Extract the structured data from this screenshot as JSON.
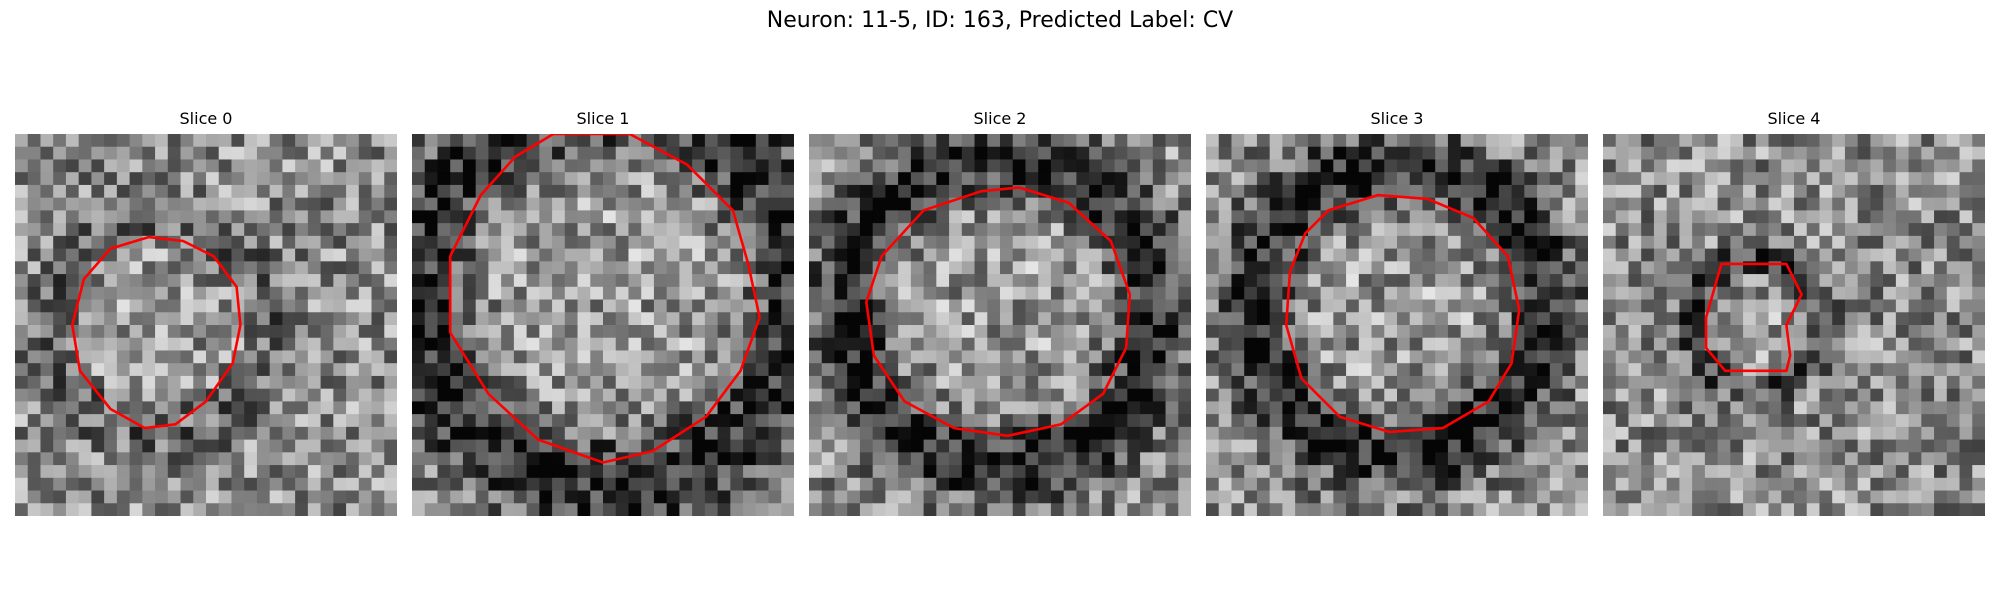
{
  "figure": {
    "title": "Neuron: 11-5, ID: 163, Predicted Label: CV",
    "contour_color": "#ff0000",
    "panels": [
      {
        "title": "Slice 0",
        "dark_ring_strength": 0.35,
        "contour": [
          [
            0.35,
            0.27
          ],
          [
            0.44,
            0.28
          ],
          [
            0.52,
            0.32
          ],
          [
            0.58,
            0.4
          ],
          [
            0.59,
            0.5
          ],
          [
            0.57,
            0.6
          ],
          [
            0.5,
            0.7
          ],
          [
            0.42,
            0.76
          ],
          [
            0.34,
            0.77
          ],
          [
            0.25,
            0.72
          ],
          [
            0.17,
            0.62
          ],
          [
            0.15,
            0.5
          ],
          [
            0.18,
            0.38
          ],
          [
            0.25,
            0.3
          ]
        ]
      },
      {
        "title": "Slice 1",
        "dark_ring_strength": 0.85,
        "contour": [
          [
            0.37,
            0.0
          ],
          [
            0.57,
            0.0
          ],
          [
            0.72,
            0.08
          ],
          [
            0.84,
            0.2
          ],
          [
            0.88,
            0.34
          ],
          [
            0.91,
            0.48
          ],
          [
            0.86,
            0.62
          ],
          [
            0.77,
            0.74
          ],
          [
            0.63,
            0.83
          ],
          [
            0.5,
            0.86
          ],
          [
            0.33,
            0.8
          ],
          [
            0.2,
            0.68
          ],
          [
            0.1,
            0.52
          ],
          [
            0.1,
            0.32
          ],
          [
            0.18,
            0.16
          ],
          [
            0.27,
            0.06
          ]
        ]
      },
      {
        "title": "Slice 2",
        "dark_ring_strength": 0.9,
        "contour": [
          [
            0.3,
            0.2
          ],
          [
            0.45,
            0.15
          ],
          [
            0.55,
            0.14
          ],
          [
            0.68,
            0.18
          ],
          [
            0.79,
            0.28
          ],
          [
            0.84,
            0.42
          ],
          [
            0.83,
            0.56
          ],
          [
            0.77,
            0.68
          ],
          [
            0.66,
            0.76
          ],
          [
            0.52,
            0.79
          ],
          [
            0.38,
            0.77
          ],
          [
            0.25,
            0.7
          ],
          [
            0.17,
            0.58
          ],
          [
            0.15,
            0.44
          ],
          [
            0.19,
            0.32
          ]
        ]
      },
      {
        "title": "Slice 3",
        "dark_ring_strength": 0.95,
        "contour": [
          [
            0.32,
            0.2
          ],
          [
            0.45,
            0.16
          ],
          [
            0.58,
            0.17
          ],
          [
            0.7,
            0.22
          ],
          [
            0.79,
            0.32
          ],
          [
            0.82,
            0.46
          ],
          [
            0.8,
            0.6
          ],
          [
            0.74,
            0.7
          ],
          [
            0.62,
            0.77
          ],
          [
            0.48,
            0.78
          ],
          [
            0.35,
            0.74
          ],
          [
            0.25,
            0.64
          ],
          [
            0.21,
            0.5
          ],
          [
            0.22,
            0.36
          ],
          [
            0.26,
            0.26
          ]
        ]
      },
      {
        "title": "Slice 4",
        "dark_ring_strength": 0.7,
        "contour": [
          [
            0.31,
            0.34
          ],
          [
            0.48,
            0.34
          ],
          [
            0.52,
            0.42
          ],
          [
            0.48,
            0.5
          ],
          [
            0.49,
            0.58
          ],
          [
            0.48,
            0.62
          ],
          [
            0.32,
            0.62
          ],
          [
            0.27,
            0.56
          ],
          [
            0.27,
            0.48
          ]
        ]
      }
    ]
  }
}
